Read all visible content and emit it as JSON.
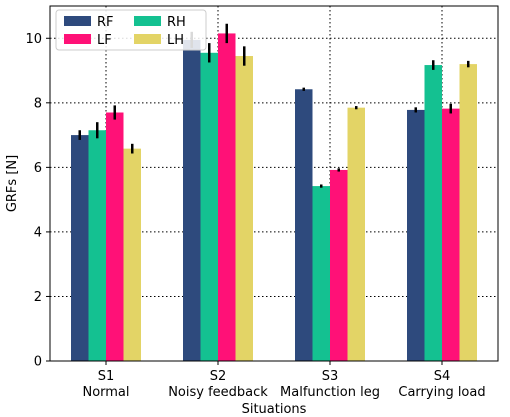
{
  "chart_data": {
    "type": "bar",
    "categories": [
      "S1\nNormal",
      "S2\nNoisy feedback",
      "S3\nMalfunction leg",
      "S4\nCarrying load"
    ],
    "xlabel": "Situations",
    "ylabel": "GRFs [N]",
    "ylim": [
      0,
      11
    ],
    "yticks": [
      0,
      2,
      4,
      6,
      8,
      10
    ],
    "grid": true,
    "legend_position": "top-left",
    "series": [
      {
        "name": "RF",
        "color": "#2e4a7d",
        "values": [
          7.0,
          9.95,
          8.42,
          7.78
        ],
        "errors": [
          0.15,
          0.25,
          0.05,
          0.08
        ]
      },
      {
        "name": "RH",
        "color": "#14c191",
        "values": [
          7.15,
          9.55,
          5.42,
          9.17
        ],
        "errors": [
          0.25,
          0.3,
          0.05,
          0.15
        ]
      },
      {
        "name": "LF",
        "color": "#ff1177",
        "values": [
          7.7,
          10.15,
          5.92,
          7.82
        ],
        "errors": [
          0.22,
          0.3,
          0.05,
          0.15
        ]
      },
      {
        "name": "LH",
        "color": "#e3d466",
        "values": [
          6.58,
          9.45,
          7.85,
          9.2
        ],
        "errors": [
          0.15,
          0.3,
          0.05,
          0.1
        ]
      }
    ]
  }
}
